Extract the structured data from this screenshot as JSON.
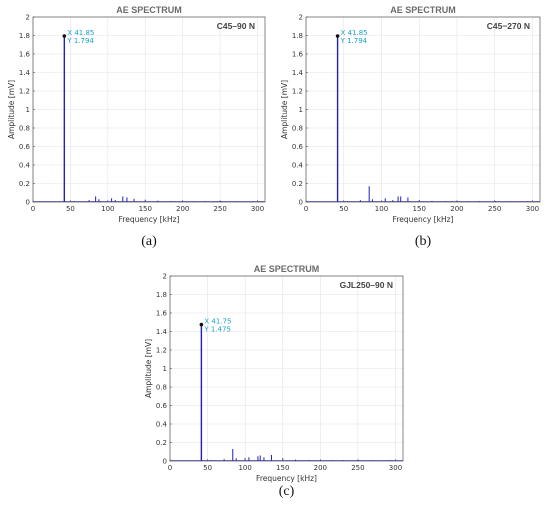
{
  "chart_data": [
    {
      "type": "bar",
      "title": "AE SPECTRUM",
      "specimen": "C45–90 N",
      "sublabel": "(a)",
      "xlabel": "Frequency [kHz]",
      "ylabel": "Amplitude [mV]",
      "xlim": [
        0,
        310
      ],
      "ylim": [
        0,
        2
      ],
      "xticks": [
        0,
        50,
        100,
        150,
        200,
        250,
        300
      ],
      "yticks": [
        0,
        0.2,
        0.4,
        0.6,
        0.8,
        1,
        1.2,
        1.4,
        1.6,
        1.8,
        2
      ],
      "grid": true,
      "color": "#1f1fbf",
      "annotation": {
        "x_label": "X 41.85",
        "y_label": "Y 1.794",
        "x": 41.85,
        "y": 1.794,
        "color": "#1aa3c8"
      },
      "peaks": [
        {
          "x": 41.85,
          "y": 1.794
        },
        {
          "x": 55,
          "y": 0.01
        },
        {
          "x": 75,
          "y": 0.02
        },
        {
          "x": 83.7,
          "y": 0.06
        },
        {
          "x": 88,
          "y": 0.03
        },
        {
          "x": 105,
          "y": 0.04
        },
        {
          "x": 110,
          "y": 0.02
        },
        {
          "x": 120,
          "y": 0.06
        },
        {
          "x": 125.5,
          "y": 0.05
        },
        {
          "x": 135,
          "y": 0.035
        },
        {
          "x": 150,
          "y": 0.025
        },
        {
          "x": 167,
          "y": 0.015
        },
        {
          "x": 185,
          "y": 0.01
        },
        {
          "x": 200,
          "y": 0.012
        },
        {
          "x": 215,
          "y": 0.008
        },
        {
          "x": 230,
          "y": 0.01
        },
        {
          "x": 251,
          "y": 0.01
        },
        {
          "x": 270,
          "y": 0.008
        },
        {
          "x": 293,
          "y": 0.008
        }
      ]
    },
    {
      "type": "bar",
      "title": "AE SPECTRUM",
      "specimen": "C45−270 N",
      "sublabel": "(b)",
      "xlabel": "Frequency [kHz]",
      "ylabel": "Amplitude [mV]",
      "xlim": [
        0,
        310
      ],
      "ylim": [
        0,
        2
      ],
      "xticks": [
        0,
        50,
        100,
        150,
        200,
        250,
        300
      ],
      "yticks": [
        0,
        0.2,
        0.4,
        0.6,
        0.8,
        1,
        1.2,
        1.4,
        1.6,
        1.8,
        2
      ],
      "grid": true,
      "color": "#1f1fbf",
      "annotation": {
        "x_label": "X 41.85",
        "y_label": "Y 1.794",
        "x": 41.85,
        "y": 1.794,
        "color": "#1aa3c8"
      },
      "peaks": [
        {
          "x": 41.85,
          "y": 1.794
        },
        {
          "x": 55,
          "y": 0.01
        },
        {
          "x": 72,
          "y": 0.02
        },
        {
          "x": 83.7,
          "y": 0.17
        },
        {
          "x": 88,
          "y": 0.03
        },
        {
          "x": 105,
          "y": 0.04
        },
        {
          "x": 115,
          "y": 0.02
        },
        {
          "x": 122,
          "y": 0.06
        },
        {
          "x": 125.5,
          "y": 0.06
        },
        {
          "x": 135,
          "y": 0.05
        },
        {
          "x": 150,
          "y": 0.02
        },
        {
          "x": 167,
          "y": 0.012
        },
        {
          "x": 185,
          "y": 0.01
        },
        {
          "x": 200,
          "y": 0.01
        },
        {
          "x": 215,
          "y": 0.008
        },
        {
          "x": 230,
          "y": 0.01
        },
        {
          "x": 251,
          "y": 0.01
        },
        {
          "x": 270,
          "y": 0.008
        },
        {
          "x": 293,
          "y": 0.008
        }
      ]
    },
    {
      "type": "bar",
      "title": "AE SPECTRUM",
      "specimen": "GJL250–90 N",
      "sublabel": "(c)",
      "xlabel": "Frequency [kHz]",
      "ylabel": "Amplitude [mV]",
      "xlim": [
        0,
        310
      ],
      "ylim": [
        0,
        2
      ],
      "xticks": [
        0,
        50,
        100,
        150,
        200,
        250,
        300
      ],
      "yticks": [
        0,
        0.2,
        0.4,
        0.6,
        0.8,
        1,
        1.2,
        1.4,
        1.6,
        1.8,
        2
      ],
      "grid": true,
      "color": "#1f1fbf",
      "annotation": {
        "x_label": "X 41.75",
        "y_label": "Y 1.475",
        "x": 41.75,
        "y": 1.475,
        "color": "#1aa3c8"
      },
      "peaks": [
        {
          "x": 41.75,
          "y": 1.475
        },
        {
          "x": 55,
          "y": 0.01
        },
        {
          "x": 72,
          "y": 0.02
        },
        {
          "x": 83.5,
          "y": 0.13
        },
        {
          "x": 88,
          "y": 0.03
        },
        {
          "x": 100,
          "y": 0.03
        },
        {
          "x": 105,
          "y": 0.04
        },
        {
          "x": 117,
          "y": 0.05
        },
        {
          "x": 120,
          "y": 0.06
        },
        {
          "x": 125,
          "y": 0.04
        },
        {
          "x": 135,
          "y": 0.065
        },
        {
          "x": 150,
          "y": 0.03
        },
        {
          "x": 167,
          "y": 0.015
        },
        {
          "x": 185,
          "y": 0.01
        },
        {
          "x": 200,
          "y": 0.01
        },
        {
          "x": 215,
          "y": 0.008
        },
        {
          "x": 230,
          "y": 0.01
        },
        {
          "x": 251,
          "y": 0.01
        },
        {
          "x": 270,
          "y": 0.008
        },
        {
          "x": 293,
          "y": 0.008
        }
      ]
    }
  ]
}
